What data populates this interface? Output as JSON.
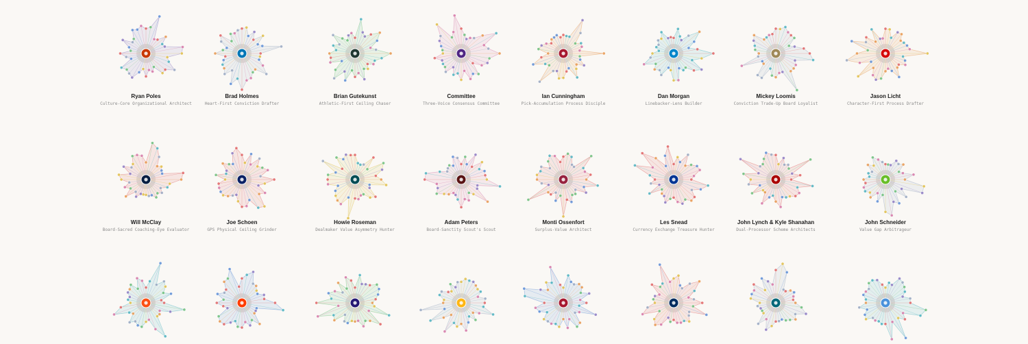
{
  "palette": [
    "#e06666",
    "#e89a52",
    "#e0c04a",
    "#6fbf7d",
    "#4fb3bf",
    "#5f8fd6",
    "#8e7cc3",
    "#d67aa8",
    "#9aa9c2"
  ],
  "chart_data": {
    "type": "radial-profile-grid",
    "cards": [
      {
        "name": "Ryan Poles",
        "archetype": "Culture-Core Organizational Architect",
        "team_icon": "bears-logo-icon",
        "team_color": "#c83803",
        "seed": 11
      },
      {
        "name": "Brad Holmes",
        "archetype": "Heart-First Conviction Drafter",
        "team_icon": "lions-logo-icon",
        "team_color": "#0076b6",
        "seed": 23
      },
      {
        "name": "Brian Gutekunst",
        "archetype": "Athletic-First Ceiling Chaser",
        "team_icon": "packers-logo-icon",
        "team_color": "#203731",
        "seed": 37
      },
      {
        "name": "Committee",
        "archetype": "Three-Voice Consensus Committee",
        "team_icon": "vikings-logo-icon",
        "team_color": "#4f2683",
        "seed": 41
      },
      {
        "name": "Ian Cunningham",
        "archetype": "Pick-Accumulation Process Disciple",
        "team_icon": "falcons-logo-icon",
        "team_color": "#a71930",
        "seed": 53
      },
      {
        "name": "Dan Morgan",
        "archetype": "Linebacker-Lens Builder",
        "team_icon": "panthers-logo-icon",
        "team_color": "#0085ca",
        "seed": 67
      },
      {
        "name": "Mickey Loomis",
        "archetype": "Conviction Trade-Up Board Loyalist",
        "team_icon": "saints-logo-icon",
        "team_color": "#9f8958",
        "seed": 71
      },
      {
        "name": "Jason Licht",
        "archetype": "Character-First Process Drafter",
        "team_icon": "buccaneers-logo-icon",
        "team_color": "#d50a0a",
        "seed": 83
      },
      {
        "name": "Will McClay",
        "archetype": "Board-Sacred Coaching-Eye Evaluator",
        "team_icon": "cowboys-logo-icon",
        "team_color": "#041e42",
        "seed": 97
      },
      {
        "name": "Joe Schoen",
        "archetype": "GPS Physical Ceiling Grinder",
        "team_icon": "giants-logo-icon",
        "team_color": "#0b2265",
        "seed": 101
      },
      {
        "name": "Howie Roseman",
        "archetype": "Dealmaker Value Asymmetry Hunter",
        "team_icon": "eagles-logo-icon",
        "team_color": "#004c54",
        "seed": 113
      },
      {
        "name": "Adam Peters",
        "archetype": "Board-Sanctity Scout's Scout",
        "team_icon": "commanders-logo-icon",
        "team_color": "#5a1414",
        "seed": 127
      },
      {
        "name": "Monti Ossenfort",
        "archetype": "Surplus-Value Architect",
        "team_icon": "cardinals-logo-icon",
        "team_color": "#97233f",
        "seed": 131
      },
      {
        "name": "Les Snead",
        "archetype": "Currency Exchange Treasure Hunter",
        "team_icon": "rams-logo-icon",
        "team_color": "#003594",
        "seed": 139
      },
      {
        "name": "John Lynch & Kyle Shanahan",
        "archetype": "Dual-Processor Scheme Architects",
        "team_icon": "49ers-logo-icon",
        "team_color": "#aa0000",
        "seed": 149
      },
      {
        "name": "John Schneider",
        "archetype": "Value Gap Arbitrageur",
        "team_icon": "seahawks-logo-icon",
        "team_color": "#69be28",
        "seed": 157
      },
      {
        "name": "",
        "archetype": "",
        "team_icon": "bengals-logo-icon",
        "team_color": "#fb4f14",
        "seed": 163
      },
      {
        "name": "",
        "archetype": "",
        "team_icon": "browns-logo-icon",
        "team_color": "#ff3c00",
        "seed": 173
      },
      {
        "name": "",
        "archetype": "",
        "team_icon": "ravens-logo-icon",
        "team_color": "#241773",
        "seed": 181
      },
      {
        "name": "",
        "archetype": "",
        "team_icon": "steelers-logo-icon",
        "team_color": "#ffb612",
        "seed": 191
      },
      {
        "name": "",
        "archetype": "",
        "team_icon": "texans-logo-icon",
        "team_color": "#a71930",
        "seed": 193
      },
      {
        "name": "",
        "archetype": "",
        "team_icon": "colts-logo-icon",
        "team_color": "#002c5f",
        "seed": 197
      },
      {
        "name": "",
        "archetype": "",
        "team_icon": "jaguars-logo-icon",
        "team_color": "#006778",
        "seed": 199
      },
      {
        "name": "",
        "archetype": "",
        "team_icon": "titans-logo-icon",
        "team_color": "#4b92db",
        "seed": 211
      }
    ]
  }
}
